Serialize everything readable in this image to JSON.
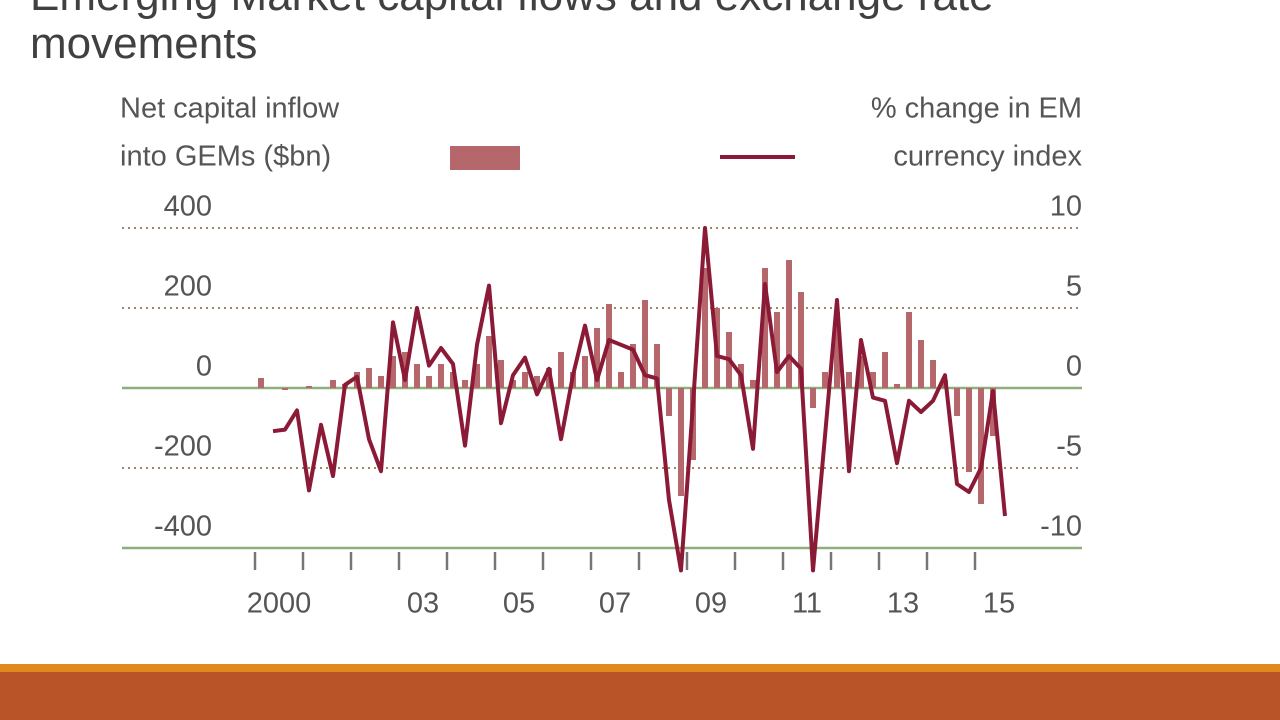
{
  "chart_data": {
    "type": "bar_line",
    "title": "Emerging Market capital flows and exchange rate movements",
    "y_label": [
      "Net capital inflow",
      "into GEMs ($bn)"
    ],
    "y2_label": [
      "% change in EM",
      "currency index"
    ],
    "x": [
      2000.125,
      2000.375,
      2000.625,
      2000.875,
      2001.125,
      2001.375,
      2001.625,
      2001.875,
      2002.125,
      2002.375,
      2002.625,
      2002.875,
      2003.125,
      2003.375,
      2003.625,
      2003.875,
      2004.125,
      2004.375,
      2004.625,
      2004.875,
      2005.125,
      2005.375,
      2005.625,
      2005.875,
      2006.125,
      2006.375,
      2006.625,
      2006.875,
      2007.125,
      2007.375,
      2007.625,
      2007.875,
      2008.125,
      2008.375,
      2008.625,
      2008.875,
      2009.125,
      2009.375,
      2009.625,
      2009.875,
      2010.125,
      2010.375,
      2010.625,
      2010.875,
      2011.125,
      2011.375,
      2011.625,
      2011.875,
      2012.125,
      2012.375,
      2012.625,
      2012.875,
      2013.125,
      2013.375,
      2013.625,
      2013.875,
      2014.125,
      2014.375,
      2014.625,
      2014.875,
      2015.125,
      2015.375,
      2015.625
    ],
    "series": [
      {
        "name": "Net capital inflow into GEMs ($bn)",
        "type": "bar",
        "color": "#b5676b",
        "values": [
          25,
          0,
          -5,
          0,
          5,
          0,
          20,
          10,
          40,
          50,
          30,
          80,
          90,
          60,
          30,
          60,
          40,
          20,
          60,
          130,
          70,
          20,
          40,
          30,
          50,
          90,
          40,
          80,
          150,
          210,
          40,
          110,
          220,
          110,
          -70,
          -270,
          -180,
          300,
          200,
          140,
          60,
          20,
          300,
          190,
          320,
          240,
          -50,
          40,
          190,
          40,
          80,
          40,
          90,
          10,
          190,
          120,
          70,
          20,
          -70,
          -210,
          -290,
          -120,
          null
        ]
      },
      {
        "name": "% change in EM currency index",
        "type": "line",
        "axis": "y2",
        "color": "#8b1a36",
        "values": [
          null,
          -2.7,
          -2.6,
          -1.4,
          -6.4,
          -2.3,
          -5.5,
          0.2,
          0.7,
          -3.2,
          -5.2,
          4.1,
          0.5,
          5,
          1.4,
          2.5,
          1.5,
          -3.6,
          2.7,
          6.4,
          -2.2,
          0.8,
          1.9,
          -0.4,
          1.2,
          -3.2,
          0.8,
          3.9,
          0.5,
          3,
          2.7,
          2.4,
          0.8,
          0.6,
          -7,
          -11.4,
          -1,
          10,
          2,
          1.8,
          0.8,
          -3.8,
          6.5,
          1,
          2,
          1.2,
          -11.4,
          -3,
          5.5,
          -5.2,
          3,
          -0.6,
          -0.8,
          -4.7,
          -0.8,
          -1.5,
          -0.8,
          0.8,
          -6,
          -6.5,
          -5,
          -0.2,
          -8
        ]
      }
    ],
    "xlim": [
      2000,
      2016
    ],
    "xticks": [
      {
        "value": 2000.5,
        "label": "2000"
      },
      {
        "value": 2003.5,
        "label": "03"
      },
      {
        "value": 2005.5,
        "label": "05"
      },
      {
        "value": 2007.5,
        "label": "07"
      },
      {
        "value": 2009.5,
        "label": "09"
      },
      {
        "value": 2011.5,
        "label": "11"
      },
      {
        "value": 2013.5,
        "label": "13"
      },
      {
        "value": 2015.5,
        "label": "15"
      }
    ],
    "xminor": [
      2000,
      2001,
      2002,
      2003,
      2004,
      2005,
      2006,
      2007,
      2008,
      2009,
      2010,
      2011,
      2012,
      2013,
      2014,
      2015
    ],
    "ylim": [
      -400,
      400
    ],
    "yticks": [
      400,
      200,
      0,
      -200,
      -400
    ],
    "y2lim": [
      -10,
      10
    ],
    "y2ticks": [
      10,
      5,
      0,
      -5,
      -10
    ],
    "grid": true
  }
}
